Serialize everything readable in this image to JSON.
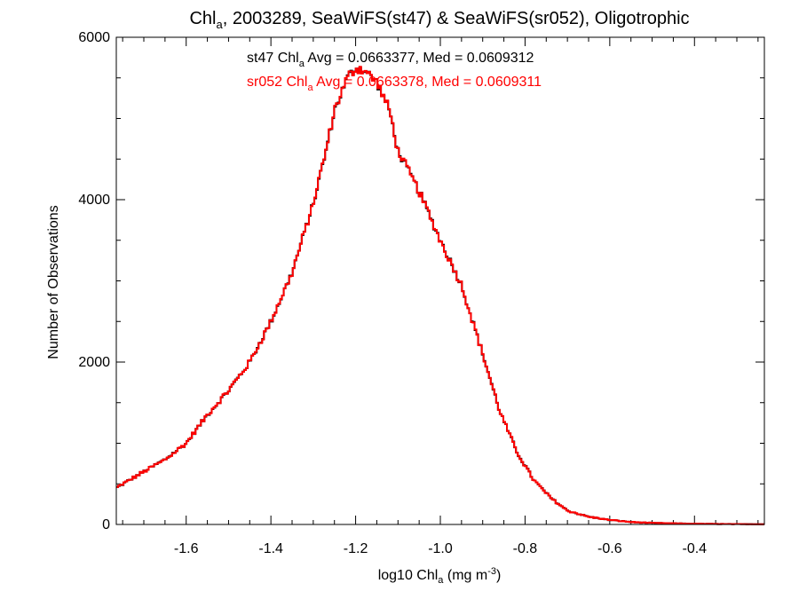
{
  "chart_data": {
    "type": "histogram-step",
    "title": {
      "pre": "Chl",
      "sub": "a",
      "post": ", 2003289, SeaWiFS(st47) & SeaWiFS(sr052), Oligotrophic"
    },
    "xlabel": {
      "pre": "log10 Chl",
      "sub": "a",
      "mid": " (mg m",
      "sup": "-3",
      "post": ")"
    },
    "ylabel": "Number of Observations",
    "xlim": [
      -1.765,
      -0.235
    ],
    "ylim": [
      0,
      6000
    ],
    "x_ticks": [
      -1.6,
      -1.4,
      -1.2,
      -1.0,
      -0.8,
      -0.6,
      -0.4
    ],
    "x_tick_labels": [
      "-1.6",
      "-1.4",
      "-1.2",
      "-1.0",
      "-0.8",
      "-0.6",
      "-0.4"
    ],
    "y_ticks": [
      0,
      2000,
      4000,
      6000
    ],
    "y_tick_labels": [
      "0",
      "2000",
      "4000",
      "6000"
    ],
    "annotations": [
      {
        "pre": "st47 Chl",
        "sub": "a",
        "post": " Avg = 0.0663377, Med = 0.0609312",
        "color": "#000000"
      },
      {
        "pre": "sr052 Chl",
        "sub": "a",
        "post": " Avg = 0.0663378, Med = 0.0609311",
        "color": "#ff0000"
      }
    ],
    "series_colors": [
      "#000000",
      "#ff0000"
    ],
    "anchors": [
      [
        -1.765,
        450
      ],
      [
        -1.7,
        650
      ],
      [
        -1.65,
        800
      ],
      [
        -1.6,
        1000
      ],
      [
        -1.55,
        1350
      ],
      [
        -1.5,
        1650
      ],
      [
        -1.45,
        2000
      ],
      [
        -1.4,
        2500
      ],
      [
        -1.35,
        3100
      ],
      [
        -1.3,
        3950
      ],
      [
        -1.27,
        4600
      ],
      [
        -1.25,
        5100
      ],
      [
        -1.22,
        5500
      ],
      [
        -1.2,
        5620
      ],
      [
        -1.18,
        5600
      ],
      [
        -1.15,
        5450
      ],
      [
        -1.12,
        5100
      ],
      [
        -1.1,
        4600
      ],
      [
        -1.05,
        4100
      ],
      [
        -1.0,
        3500
      ],
      [
        -0.95,
        2950
      ],
      [
        -0.9,
        2100
      ],
      [
        -0.86,
        1400
      ],
      [
        -0.82,
        900
      ],
      [
        -0.78,
        550
      ],
      [
        -0.74,
        330
      ],
      [
        -0.7,
        170
      ],
      [
        -0.65,
        95
      ],
      [
        -0.6,
        55
      ],
      [
        -0.55,
        30
      ],
      [
        -0.5,
        18
      ],
      [
        -0.4,
        8
      ],
      [
        -0.3,
        4
      ],
      [
        -0.235,
        3
      ]
    ],
    "bin_width": 0.00425
  }
}
